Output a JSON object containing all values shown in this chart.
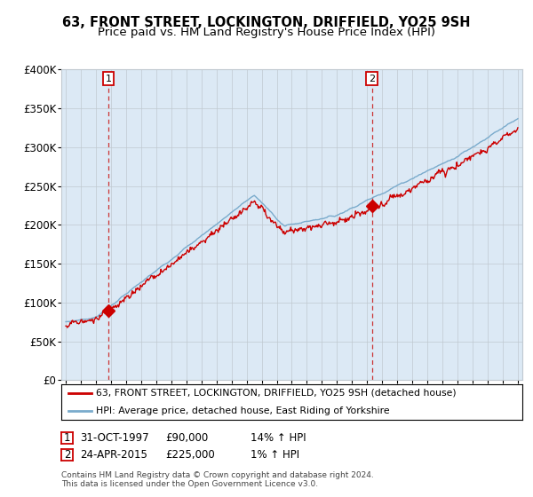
{
  "title": "63, FRONT STREET, LOCKINGTON, DRIFFIELD, YO25 9SH",
  "subtitle": "Price paid vs. HM Land Registry's House Price Index (HPI)",
  "ylim": [
    0,
    400000
  ],
  "yticks": [
    0,
    50000,
    100000,
    150000,
    200000,
    250000,
    300000,
    350000,
    400000
  ],
  "ytick_labels": [
    "£0",
    "£50K",
    "£100K",
    "£150K",
    "£200K",
    "£250K",
    "£300K",
    "£350K",
    "£400K"
  ],
  "x_start_year": 1995,
  "x_end_year": 2025,
  "sale1_date_num": 1997.83,
  "sale1_price": 90000,
  "sale2_date_num": 2015.31,
  "sale2_price": 225000,
  "legend_line1": "63, FRONT STREET, LOCKINGTON, DRIFFIELD, YO25 9SH (detached house)",
  "legend_line2": "HPI: Average price, detached house, East Riding of Yorkshire",
  "table_row1": [
    "1",
    "31-OCT-1997",
    "£90,000",
    "14% ↑ HPI"
  ],
  "table_row2": [
    "2",
    "24-APR-2015",
    "£225,000",
    "1% ↑ HPI"
  ],
  "footer": "Contains HM Land Registry data © Crown copyright and database right 2024.\nThis data is licensed under the Open Government Licence v3.0.",
  "line_color_red": "#cc0000",
  "line_color_blue": "#7aabcc",
  "bg_color": "#ffffff",
  "chart_bg_color": "#dce9f5",
  "grid_color": "#c0c8d0",
  "title_fontsize": 10.5,
  "subtitle_fontsize": 9.5
}
